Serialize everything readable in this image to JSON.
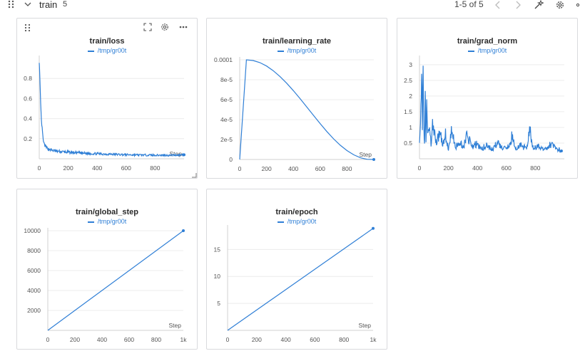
{
  "section": {
    "title": "train",
    "count": "5",
    "pager": "1-5 of 5"
  },
  "colors": {
    "series": "#2f7fd6",
    "grid": "#ececec",
    "axis": "#9a9a9a",
    "tick": "#555555"
  },
  "icons": [
    "drag-handle-icon",
    "chevron-down-icon",
    "chevron-left-icon",
    "chevron-right-icon",
    "magic-wand-icon",
    "gear-icon",
    "fullscreen-icon",
    "more-icon"
  ],
  "panels": [
    {
      "title": "train/loss",
      "legend": "/tmp/gr00t",
      "xlabel": "Step"
    },
    {
      "title": "train/learning_rate",
      "legend": "/tmp/gr00t",
      "xlabel": "Step"
    },
    {
      "title": "train/grad_norm",
      "legend": "/tmp/gr00t",
      "xlabel": ""
    },
    {
      "title": "train/global_step",
      "legend": "/tmp/gr00t",
      "xlabel": "Step"
    },
    {
      "title": "train/epoch",
      "legend": "/tmp/gr00t",
      "xlabel": "Step"
    }
  ],
  "chart_data": [
    {
      "type": "line",
      "title": "train/loss",
      "xlabel": "Step",
      "xlim": [
        0,
        1000
      ],
      "ylim": [
        0,
        1.0
      ],
      "xticks": [
        "0",
        "200",
        "400",
        "600",
        "800"
      ],
      "yticks": [
        "0.2",
        "0.4",
        "0.6",
        "0.8"
      ],
      "series": [
        {
          "name": "/tmp/gr00t",
          "x": [
            0,
            3,
            6,
            10,
            15,
            20,
            25,
            30,
            40,
            50,
            60,
            80,
            100,
            150,
            200,
            300,
            400,
            500,
            600,
            700,
            800,
            900,
            1000
          ],
          "y": [
            0.97,
            0.85,
            0.72,
            0.55,
            0.38,
            0.3,
            0.22,
            0.16,
            0.13,
            0.11,
            0.1,
            0.09,
            0.08,
            0.07,
            0.065,
            0.055,
            0.05,
            0.045,
            0.04,
            0.038,
            0.036,
            0.035,
            0.04
          ]
        }
      ]
    },
    {
      "type": "line",
      "title": "train/learning_rate",
      "xlabel": "Step",
      "xlim": [
        0,
        1000
      ],
      "ylim": [
        0,
        0.0001
      ],
      "xticks": [
        "0",
        "200",
        "400",
        "600",
        "800"
      ],
      "yticks": [
        "0",
        "2e-5",
        "4e-5",
        "6e-5",
        "8e-5",
        "0.0001"
      ],
      "series": [
        {
          "name": "/tmp/gr00t",
          "x": [
            0,
            50,
            100,
            150,
            200,
            250,
            300,
            350,
            400,
            450,
            500,
            550,
            600,
            650,
            700,
            750,
            800,
            850,
            900,
            950,
            1000
          ],
          "y": [
            0,
            0.0001,
            9.93e-05,
            9.72e-05,
            9.38e-05,
            8.91e-05,
            8.33e-05,
            7.66e-05,
            6.91e-05,
            6.11e-05,
            5.27e-05,
            4.43e-05,
            3.6e-05,
            2.8e-05,
            2.07e-05,
            1.43e-05,
            8.9e-06,
            4.7e-06,
            1.7e-06,
            2e-07,
            0
          ]
        }
      ]
    },
    {
      "type": "line",
      "title": "train/grad_norm",
      "xlim": [
        0,
        1000
      ],
      "ylim": [
        0,
        3.2
      ],
      "xticks": [
        "0",
        "200",
        "400",
        "600",
        "800"
      ],
      "yticks": [
        "0.5",
        "1",
        "1.5",
        "2",
        "2.5",
        "3"
      ],
      "series": [
        {
          "name": "/tmp/gr00t",
          "x": [
            0,
            10,
            15,
            20,
            25,
            30,
            35,
            40,
            45,
            50,
            60,
            70,
            80,
            90,
            100,
            120,
            140,
            160,
            180,
            200,
            220,
            250,
            280,
            300,
            330,
            360,
            400,
            430,
            460,
            500,
            540,
            580,
            620,
            640,
            660,
            700,
            740,
            760,
            780,
            820,
            860,
            900,
            940,
            980
          ],
          "y": [
            0.7,
            1.4,
            3.0,
            0.9,
            3.0,
            1.1,
            0.6,
            2.0,
            0.5,
            1.6,
            0.7,
            1.3,
            0.5,
            1.1,
            0.8,
            0.5,
            0.9,
            0.4,
            0.8,
            0.3,
            0.9,
            0.35,
            0.55,
            0.3,
            0.8,
            0.35,
            0.5,
            0.3,
            0.45,
            0.3,
            0.5,
            0.3,
            0.4,
            0.75,
            0.3,
            0.45,
            0.3,
            1.05,
            0.35,
            0.4,
            0.3,
            0.45,
            0.35,
            0.25
          ]
        }
      ]
    },
    {
      "type": "line",
      "title": "train/global_step",
      "xlabel": "Step",
      "xlim": [
        0,
        1000
      ],
      "ylim": [
        0,
        10000
      ],
      "xticks": [
        "0",
        "200",
        "400",
        "600",
        "800",
        "1k"
      ],
      "yticks": [
        "2000",
        "4000",
        "6000",
        "8000",
        "10000"
      ],
      "series": [
        {
          "name": "/tmp/gr00t",
          "x": [
            0,
            1000
          ],
          "y": [
            0,
            10000
          ]
        }
      ]
    },
    {
      "type": "line",
      "title": "train/epoch",
      "xlabel": "Step",
      "xlim": [
        0,
        1000
      ],
      "ylim": [
        0,
        19
      ],
      "xticks": [
        "0",
        "200",
        "400",
        "600",
        "800",
        "1k"
      ],
      "yticks": [
        "5",
        "10",
        "15"
      ],
      "series": [
        {
          "name": "/tmp/gr00t",
          "x": [
            0,
            1000
          ],
          "y": [
            0,
            18.9
          ]
        }
      ]
    }
  ]
}
